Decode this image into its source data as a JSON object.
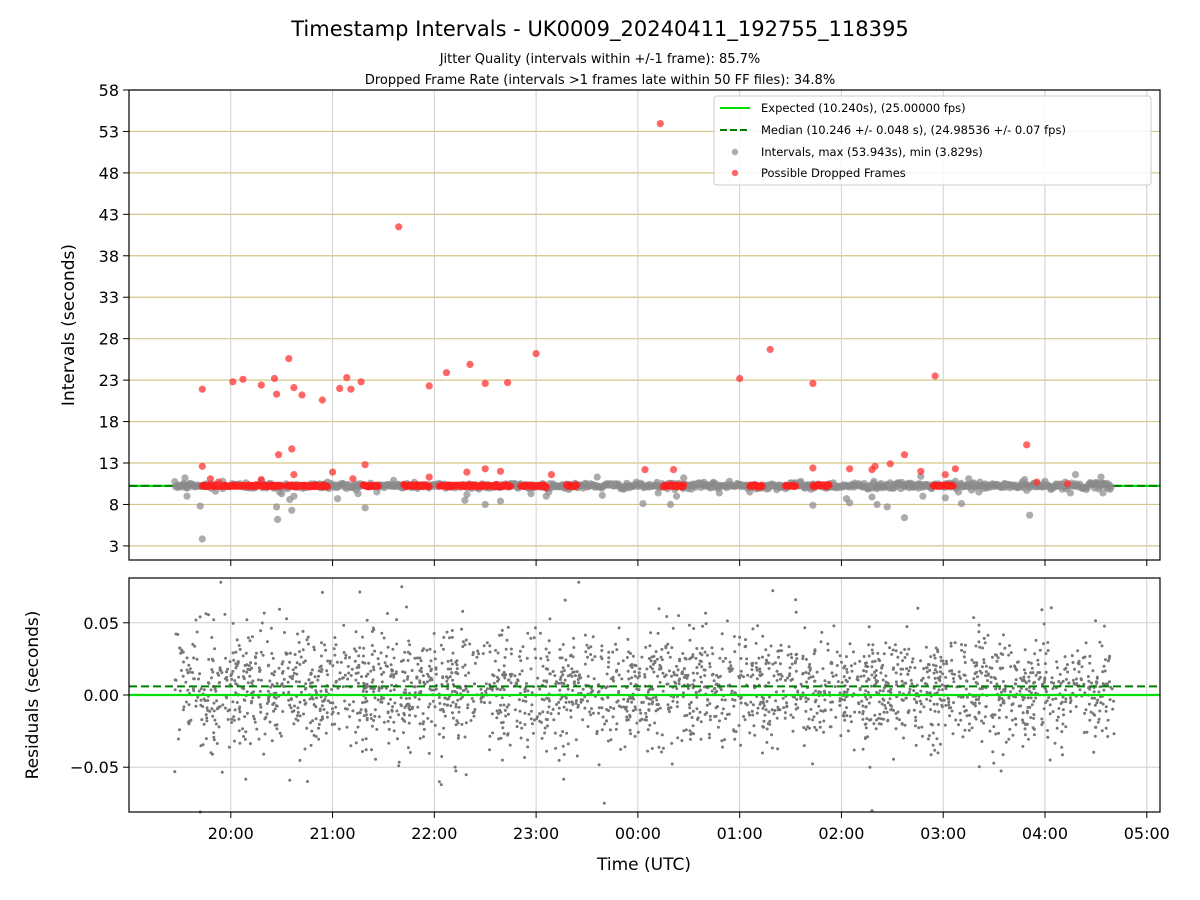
{
  "chart_data": [
    {
      "panel": "intervals",
      "type": "scatter",
      "title": "Timestamp Intervals - UK0009_20240411_192755_118395",
      "subtitle_lines": [
        "Jitter Quality (intervals within +/-1 frame): 85.7%",
        "Dropped Frame Rate (intervals >1 frames late within 50 FF files): 34.8%"
      ],
      "xlabel": "",
      "ylabel": "Intervals (seconds)",
      "xlim_hours": [
        19.0,
        29.13
      ],
      "ylim": [
        1.3,
        58
      ],
      "y_ticks": [
        3,
        8,
        13,
        18,
        23,
        28,
        33,
        38,
        43,
        48,
        53,
        58
      ],
      "x_ticks_hours": [
        20,
        21,
        22,
        23,
        24,
        25,
        26,
        27,
        28,
        29
      ],
      "x_tick_labels": [
        "20:00",
        "21:00",
        "22:00",
        "23:00",
        "00:00",
        "01:00",
        "02:00",
        "03:00",
        "04:00",
        "05:00"
      ],
      "grid": {
        "vertical": true,
        "horizontal_color": "#d4c685"
      },
      "legend_placement": "top-right",
      "expected_interval": 10.24,
      "median_interval": 10.246,
      "baseline_range_hours": [
        19.45,
        28.65
      ],
      "legend": [
        {
          "label": "Expected (10.240s), (25.00000 fps)",
          "kind": "line",
          "color": "#00e000"
        },
        {
          "label": "Median (10.246 +/- 0.048 s), (24.98536 +/- 0.07 fps)",
          "kind": "dashed",
          "color": "#008000"
        },
        {
          "label": "Intervals, max (53.943s), min (3.829s)",
          "kind": "point",
          "color": "#909090"
        },
        {
          "label": "Possible Dropped Frames",
          "kind": "point",
          "color": "#ff3333"
        }
      ],
      "series": [
        {
          "name": "Intervals, max (53.943s), min (3.829s)",
          "color": "#909090",
          "points": [
            [
              19.55,
              11.2
            ],
            [
              19.57,
              9.0
            ],
            [
              19.7,
              7.8
            ],
            [
              19.72,
              3.829
            ],
            [
              19.8,
              10.5
            ],
            [
              19.85,
              9.6
            ],
            [
              19.92,
              10.8
            ],
            [
              20.15,
              10.6
            ],
            [
              20.3,
              10.9
            ],
            [
              20.4,
              10.3
            ],
            [
              20.45,
              7.7
            ],
            [
              20.46,
              6.2
            ],
            [
              20.48,
              9.5
            ],
            [
              20.5,
              9.3
            ],
            [
              20.58,
              8.6
            ],
            [
              20.6,
              7.3
            ],
            [
              20.62,
              9.0
            ],
            [
              20.95,
              10.7
            ],
            [
              21.05,
              8.7
            ],
            [
              21.15,
              10.4
            ],
            [
              21.25,
              9.3
            ],
            [
              21.32,
              7.6
            ],
            [
              21.4,
              10.2
            ],
            [
              21.6,
              10.9
            ],
            [
              22.2,
              10.2
            ],
            [
              22.3,
              8.5
            ],
            [
              22.32,
              9.2
            ],
            [
              22.4,
              10.4
            ],
            [
              22.5,
              8.0
            ],
            [
              22.6,
              10.3
            ],
            [
              22.65,
              8.4
            ],
            [
              22.75,
              10.5
            ],
            [
              22.95,
              9.3
            ],
            [
              23.1,
              9.0
            ],
            [
              23.4,
              10.4
            ],
            [
              23.6,
              11.3
            ],
            [
              23.65,
              9.1
            ],
            [
              23.75,
              10.4
            ],
            [
              24.05,
              8.1
            ],
            [
              24.2,
              9.4
            ],
            [
              24.32,
              8.0
            ],
            [
              24.38,
              9.0
            ],
            [
              24.45,
              11.2
            ],
            [
              24.6,
              10.6
            ],
            [
              24.8,
              9.4
            ],
            [
              24.9,
              10.8
            ],
            [
              25.1,
              9.5
            ],
            [
              25.3,
              10.2
            ],
            [
              25.45,
              9.9
            ],
            [
              25.5,
              10.6
            ],
            [
              25.6,
              10.8
            ],
            [
              25.72,
              7.9
            ],
            [
              25.92,
              10.6
            ],
            [
              26.05,
              8.7
            ],
            [
              26.08,
              8.2
            ],
            [
              26.28,
              10.3
            ],
            [
              26.3,
              8.9
            ],
            [
              26.32,
              10.8
            ],
            [
              26.35,
              8.0
            ],
            [
              26.45,
              7.7
            ],
            [
              26.48,
              10.6
            ],
            [
              26.62,
              6.4
            ],
            [
              26.78,
              11.4
            ],
            [
              26.8,
              9.0
            ],
            [
              27.02,
              8.8
            ],
            [
              27.12,
              10.8
            ],
            [
              27.15,
              9.5
            ],
            [
              27.18,
              8.1
            ],
            [
              27.25,
              11.1
            ],
            [
              27.3,
              10.6
            ],
            [
              27.35,
              9.5
            ],
            [
              27.6,
              10.5
            ],
            [
              27.8,
              11.0
            ],
            [
              27.85,
              6.7
            ],
            [
              27.82,
              9.7
            ],
            [
              28.0,
              10.8
            ],
            [
              28.15,
              10.2
            ],
            [
              28.2,
              10.7
            ],
            [
              28.25,
              9.4
            ],
            [
              28.3,
              11.6
            ],
            [
              28.55,
              11.3
            ],
            [
              28.57,
              9.4
            ]
          ]
        },
        {
          "name": "Possible Dropped Frames",
          "color": "#ff3333",
          "points": [
            [
              19.72,
              21.9
            ],
            [
              19.72,
              12.6
            ],
            [
              19.8,
              11.1
            ],
            [
              19.88,
              10.7
            ],
            [
              20.02,
              22.8
            ],
            [
              20.12,
              23.1
            ],
            [
              20.3,
              22.4
            ],
            [
              20.3,
              11.0
            ],
            [
              20.43,
              23.2
            ],
            [
              20.45,
              21.3
            ],
            [
              20.47,
              14.0
            ],
            [
              20.57,
              25.6
            ],
            [
              20.6,
              14.7
            ],
            [
              20.62,
              22.1
            ],
            [
              20.62,
              11.6
            ],
            [
              20.7,
              21.2
            ],
            [
              20.9,
              20.6
            ],
            [
              21.0,
              11.9
            ],
            [
              21.07,
              22.0
            ],
            [
              21.14,
              23.3
            ],
            [
              21.18,
              21.9
            ],
            [
              21.2,
              11.1
            ],
            [
              21.28,
              22.8
            ],
            [
              21.32,
              12.8
            ],
            [
              21.65,
              41.5
            ],
            [
              21.95,
              22.3
            ],
            [
              21.95,
              11.3
            ],
            [
              22.12,
              23.9
            ],
            [
              22.35,
              24.9
            ],
            [
              22.32,
              11.9
            ],
            [
              22.5,
              22.6
            ],
            [
              22.5,
              12.3
            ],
            [
              22.65,
              12.0
            ],
            [
              22.72,
              22.7
            ],
            [
              23.0,
              26.2
            ],
            [
              23.15,
              11.6
            ],
            [
              24.07,
              12.2
            ],
            [
              24.22,
              53.943
            ],
            [
              24.35,
              12.2
            ],
            [
              25.0,
              23.2
            ],
            [
              25.3,
              26.7
            ],
            [
              25.72,
              22.6
            ],
            [
              25.72,
              12.4
            ],
            [
              26.08,
              12.3
            ],
            [
              26.3,
              12.2
            ],
            [
              26.33,
              12.6
            ],
            [
              26.48,
              12.9
            ],
            [
              26.62,
              14.0
            ],
            [
              26.78,
              12.0
            ],
            [
              26.92,
              23.5
            ],
            [
              27.02,
              11.6
            ],
            [
              27.12,
              12.3
            ],
            [
              27.82,
              15.2
            ],
            [
              27.92,
              10.7
            ],
            [
              28.22,
              10.5
            ]
          ],
          "dense_runs_hours": [
            [
              19.72,
              20.5
            ],
            [
              20.55,
              20.95
            ],
            [
              21.3,
              21.45
            ],
            [
              21.7,
              21.95
            ],
            [
              22.05,
              22.75
            ],
            [
              22.85,
              23.1
            ],
            [
              23.3,
              23.4
            ],
            [
              24.25,
              24.45
            ],
            [
              25.1,
              25.22
            ],
            [
              25.45,
              25.55
            ],
            [
              25.72,
              25.88
            ],
            [
              26.9,
              27.1
            ]
          ]
        }
      ]
    },
    {
      "panel": "residuals",
      "type": "scatter",
      "title": "",
      "xlabel": "Time (UTC)",
      "ylabel": "Residuals (seconds)",
      "xlim_hours": [
        19.0,
        29.13
      ],
      "ylim": [
        -0.081,
        0.081
      ],
      "y_ticks": [
        0.05,
        0.0,
        -0.05
      ],
      "y_tick_labels": [
        "0.05",
        "0.00",
        "−0.05"
      ],
      "x_ticks_hours": [
        20,
        21,
        22,
        23,
        24,
        25,
        26,
        27,
        28,
        29
      ],
      "x_tick_labels": [
        "20:00",
        "21:00",
        "22:00",
        "23:00",
        "00:00",
        "01:00",
        "02:00",
        "03:00",
        "04:00",
        "05:00"
      ],
      "grid": {
        "vertical": true,
        "horizontal": true
      },
      "expected_line": 0.0,
      "median_line": 0.006,
      "series": [
        {
          "name": "",
          "color": "#777777",
          "x_range_hours": [
            19.45,
            28.68
          ],
          "spread_sd_start": 0.022,
          "spread_sd_end": 0.017,
          "center": 0.004,
          "point_count": 2600,
          "outliers": [
            [
              19.45,
              -0.053
            ],
            [
              19.7,
              -0.081
            ],
            [
              20.58,
              -0.059
            ],
            [
              20.9,
              0.071
            ],
            [
              21.65,
              -0.049
            ],
            [
              21.68,
              0.075
            ],
            [
              22.05,
              -0.06
            ],
            [
              23.67,
              -0.075
            ],
            [
              24.4,
              0.055
            ],
            [
              25.55,
              0.066
            ],
            [
              26.28,
              -0.05
            ],
            [
              26.3,
              -0.08
            ],
            [
              26.75,
              0.06
            ],
            [
              27.97,
              0.059
            ],
            [
              28.05,
              -0.045
            ]
          ]
        }
      ]
    }
  ]
}
